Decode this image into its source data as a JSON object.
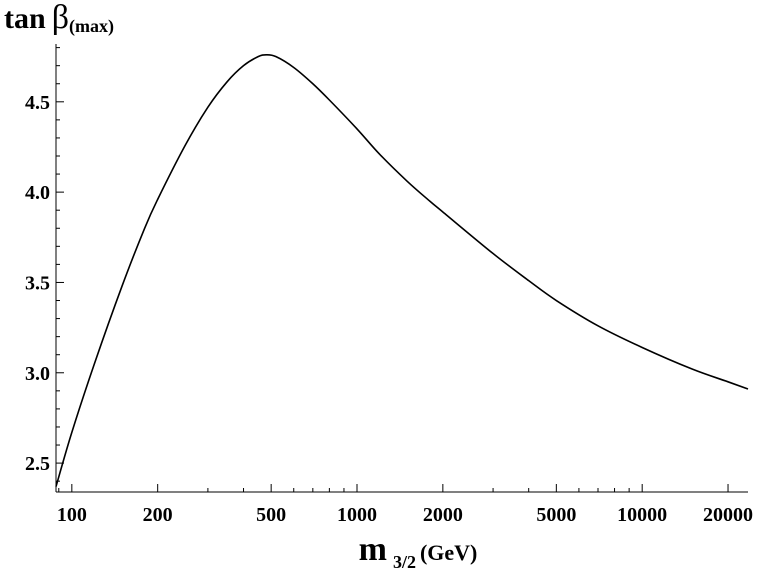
{
  "chart_data": {
    "type": "line",
    "x_scale": "log",
    "ylabel": {
      "main": "tan",
      "greek": "β",
      "subscript": "(max)"
    },
    "xlabel": {
      "main": "m",
      "subscript": "3/2",
      "unit": "(GeV)"
    },
    "xlim": [
      88,
      23500
    ],
    "ylim": [
      2.34,
      4.82
    ],
    "x_ticks": [
      {
        "value": 100,
        "label": "100"
      },
      {
        "value": 200,
        "label": "200"
      },
      {
        "value": 500,
        "label": "500"
      },
      {
        "value": 1000,
        "label": "1000"
      },
      {
        "value": 2000,
        "label": "2000"
      },
      {
        "value": 5000,
        "label": "5000"
      },
      {
        "value": 10000,
        "label": "10000"
      },
      {
        "value": 20000,
        "label": "20000"
      }
    ],
    "y_ticks": [
      {
        "value": 2.5,
        "label": "2.5"
      },
      {
        "value": 3.0,
        "label": "3.0"
      },
      {
        "value": 3.5,
        "label": "3.5"
      },
      {
        "value": 4.0,
        "label": "4.0"
      },
      {
        "value": 4.5,
        "label": "4.5"
      }
    ],
    "series": [
      {
        "color": "#000000",
        "x": [
          88,
          100,
          120,
          150,
          180,
          200,
          250,
          300,
          350,
          400,
          450,
          480,
          520,
          600,
          700,
          800,
          1000,
          1200,
          1500,
          1800,
          2000,
          3000,
          4000,
          5000,
          7000,
          10000,
          15000,
          20000,
          23500
        ],
        "y": [
          2.37,
          2.67,
          3.05,
          3.48,
          3.8,
          3.96,
          4.26,
          4.47,
          4.61,
          4.7,
          4.75,
          4.76,
          4.75,
          4.69,
          4.6,
          4.51,
          4.35,
          4.21,
          4.06,
          3.95,
          3.89,
          3.66,
          3.51,
          3.4,
          3.26,
          3.14,
          3.02,
          2.95,
          2.91
        ]
      }
    ]
  }
}
